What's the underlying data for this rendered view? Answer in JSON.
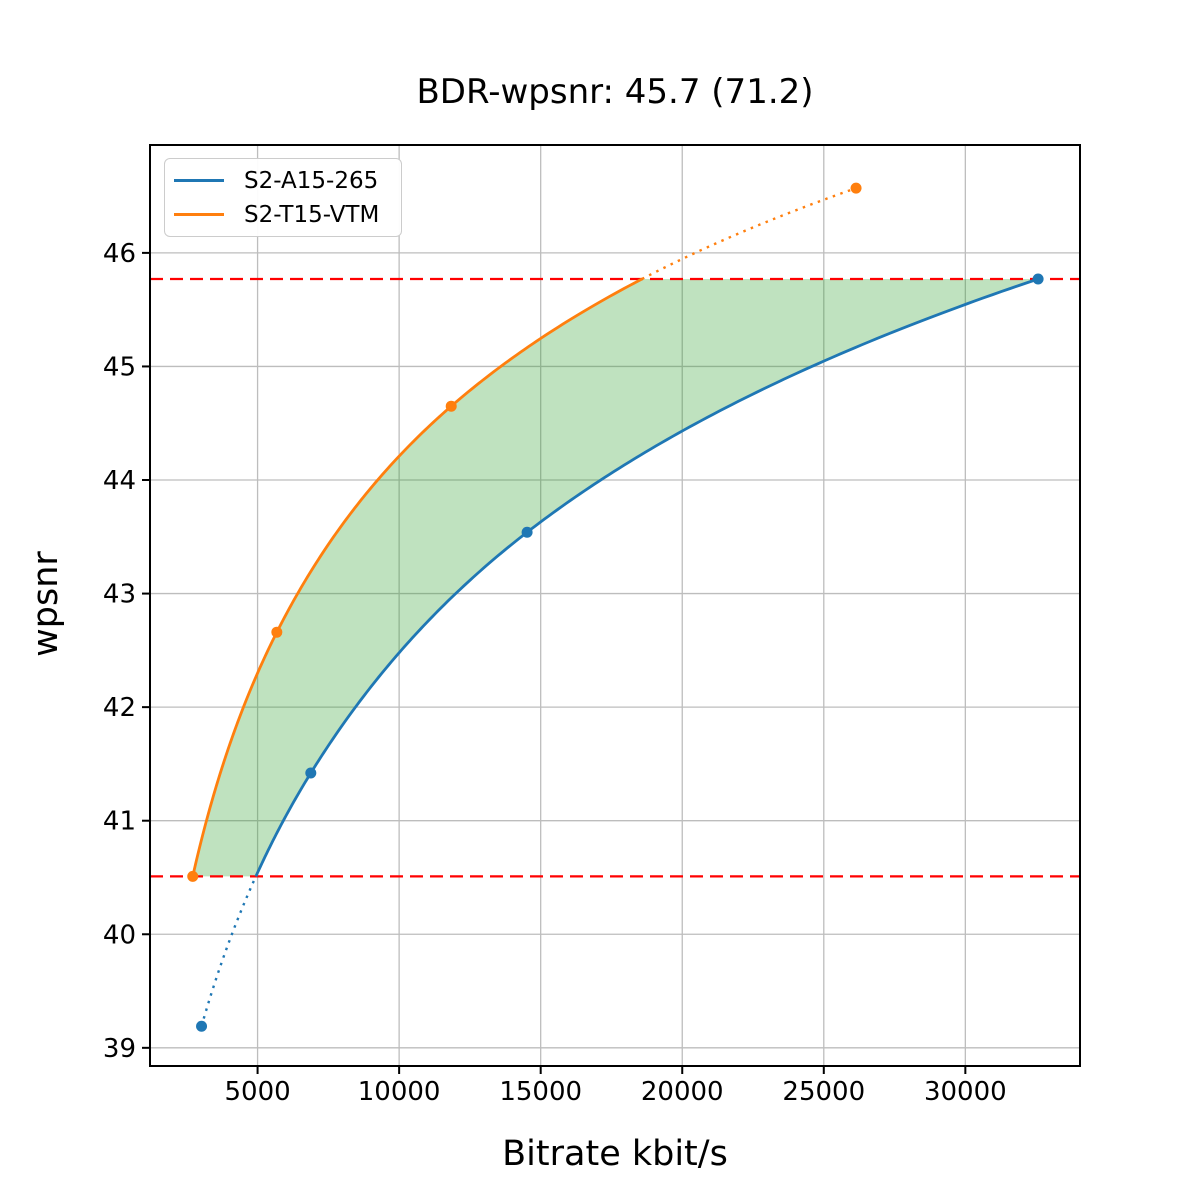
{
  "chart_data": {
    "type": "line",
    "title": "BDR-wpsnr: 45.7 (71.2)",
    "xlabel": "Bitrate kbit/s",
    "ylabel": "wpsnr",
    "xlim": [
      1200,
      34050
    ],
    "ylim": [
      38.84,
      46.95
    ],
    "xticks": [
      5000,
      10000,
      15000,
      20000,
      25000,
      30000
    ],
    "yticks": [
      39,
      40,
      41,
      42,
      43,
      44,
      45,
      46
    ],
    "grid": true,
    "legend_position": "upper-left",
    "x_interpolation": "log10-pchip",
    "series": [
      {
        "name": "S2-A15-265",
        "color": "#1f77b4",
        "marker": "circle",
        "points": [
          [
            3020,
            39.19
          ],
          [
            6880,
            41.42
          ],
          [
            14520,
            43.54
          ],
          [
            32570,
            45.77
          ]
        ]
      },
      {
        "name": "S2-T15-VTM",
        "color": "#ff7f0e",
        "marker": "circle",
        "points": [
          [
            2710,
            40.51
          ],
          [
            5680,
            42.66
          ],
          [
            11840,
            44.65
          ],
          [
            26140,
            46.57
          ]
        ]
      }
    ],
    "reference_lines": [
      {
        "y": 40.51,
        "color": "#ff0000",
        "style": "dashed"
      },
      {
        "y": 45.77,
        "color": "#ff0000",
        "style": "dashed"
      }
    ],
    "shaded_region": {
      "between": [
        "S2-A15-265",
        "S2-T15-VTM"
      ],
      "clipped_to_y": [
        40.51,
        45.77
      ],
      "color": "#2ca02c",
      "opacity": 0.3
    },
    "style_note": "curves solid between reference lines, dotted outside"
  }
}
